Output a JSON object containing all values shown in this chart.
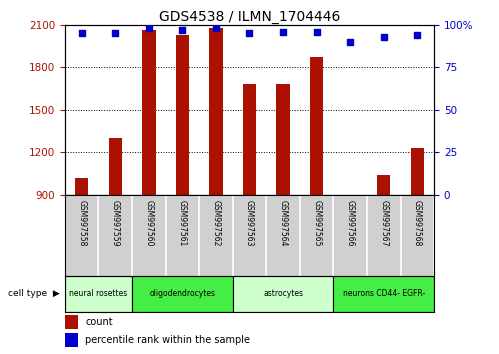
{
  "title": "GDS4538 / ILMN_1704446",
  "samples": [
    "GSM997558",
    "GSM997559",
    "GSM997560",
    "GSM997561",
    "GSM997562",
    "GSM997563",
    "GSM997564",
    "GSM997565",
    "GSM997566",
    "GSM997567",
    "GSM997568"
  ],
  "counts": [
    1020,
    1300,
    2060,
    2030,
    2080,
    1680,
    1680,
    1870,
    870,
    1040,
    1230
  ],
  "percentiles": [
    95,
    95,
    98,
    97,
    98,
    95,
    96,
    96,
    90,
    93,
    94
  ],
  "cell_types": [
    {
      "label": "neural rosettes",
      "start": 0,
      "end": 1,
      "color": "#ccffcc"
    },
    {
      "label": "oligodendrocytes",
      "start": 2,
      "end": 4,
      "color": "#44ee44"
    },
    {
      "label": "astrocytes",
      "start": 5,
      "end": 7,
      "color": "#ccffcc"
    },
    {
      "label": "neurons CD44- EGFR-",
      "start": 8,
      "end": 10,
      "color": "#44ee44"
    }
  ],
  "ylim_left": [
    900,
    2100
  ],
  "ylim_right": [
    0,
    100
  ],
  "yticks_left": [
    900,
    1200,
    1500,
    1800,
    2100
  ],
  "yticks_right": [
    0,
    25,
    50,
    75,
    100
  ],
  "bar_color": "#aa1100",
  "dot_color": "#0000cc",
  "bar_width": 0.4,
  "label_count": "count",
  "label_percentile": "percentile rank within the sample",
  "cell_type_label": "cell type"
}
